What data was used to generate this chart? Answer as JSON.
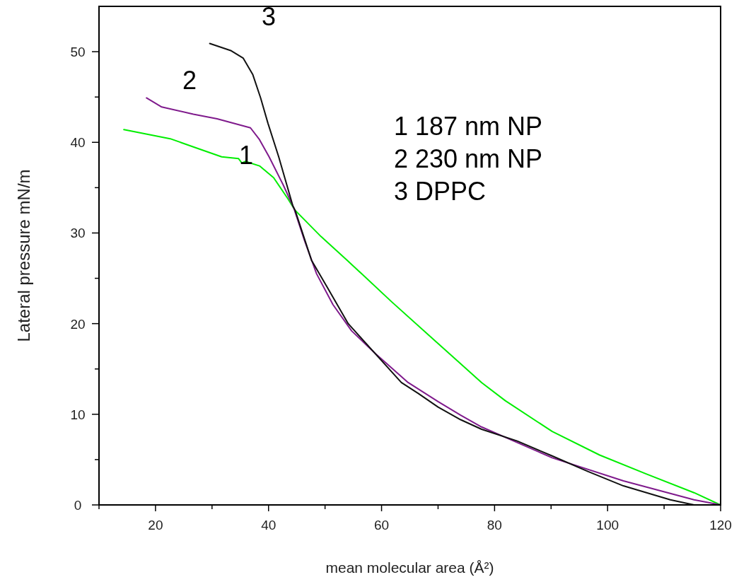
{
  "chart_data": {
    "type": "line",
    "xlabel": "mean molecular area (Å²)",
    "ylabel": "Lateral pressure mN/m",
    "xlim": [
      10,
      120
    ],
    "ylim": [
      0,
      55
    ],
    "xticks": [
      {
        "value": 10,
        "label": null
      },
      20,
      {
        "value": 30,
        "label": null
      },
      40,
      {
        "value": 50,
        "label": null
      },
      60,
      {
        "value": 70,
        "label": null
      },
      80,
      {
        "value": 90,
        "label": null
      },
      100,
      {
        "value": 110,
        "label": null
      },
      120
    ],
    "yticks": [
      0,
      {
        "value": 5,
        "label": null
      },
      10,
      {
        "value": 15,
        "label": null
      },
      20,
      {
        "value": 25,
        "label": null
      },
      30,
      {
        "value": 35,
        "label": null
      },
      40,
      {
        "value": 45,
        "label": null
      },
      50
    ],
    "grid": false,
    "marker": "none",
    "line_style": "solid",
    "series": [
      {
        "color": "#00ee00",
        "x": [
          14.4,
          22.6,
          26.7,
          31.7,
          34.7,
          35.3,
          35.9,
          38.4,
          40.9,
          43.4,
          44.7,
          49.3,
          53.9,
          61.8,
          69.3,
          77.7,
          81.9,
          90.2,
          98.6,
          106.9,
          115.3,
          120
        ],
        "values": [
          41.4,
          40.4,
          39.5,
          38.4,
          38.2,
          37.7,
          37.9,
          37.4,
          36.1,
          33.8,
          32.5,
          29.6,
          27.0,
          22.4,
          18.2,
          13.5,
          11.5,
          8.1,
          5.5,
          3.4,
          1.35,
          0
        ]
      },
      {
        "color": "#7f1a8c",
        "x": [
          18.4,
          21.1,
          26.7,
          30.9,
          36.8,
          38.4,
          40.1,
          42.6,
          44.5,
          46.4,
          48.5,
          51.4,
          54.7,
          58.9,
          64.7,
          70,
          74,
          77.7,
          90.2,
          102.8,
          115.3,
          120
        ],
        "values": [
          44.9,
          43.9,
          43.1,
          42.6,
          41.6,
          40.3,
          38.4,
          35.3,
          32.7,
          29.1,
          25.5,
          22.1,
          19.2,
          16.7,
          13.5,
          11.4,
          9.9,
          8.6,
          5.2,
          2.65,
          0.57,
          0
        ]
      },
      {
        "color": "#111111",
        "x": [
          29.6,
          33.4,
          35.5,
          37.2,
          38.6,
          39.9,
          41.8,
          44.3,
          44.7,
          47.6,
          50.5,
          54.1,
          63.5,
          66.5,
          70,
          74,
          77.7,
          84,
          90.2,
          96.5,
          102.8,
          111.1,
          115.3,
          120
        ],
        "values": [
          50.9,
          50.1,
          49.3,
          47.5,
          44.9,
          42.1,
          38.4,
          33.0,
          32.5,
          27.0,
          23.9,
          20.0,
          13.5,
          12.3,
          10.8,
          9.4,
          8.35,
          7.05,
          5.4,
          3.7,
          2.1,
          0.57,
          0,
          0
        ]
      }
    ],
    "annotations": [
      "1",
      "2",
      "3",
      "1 187 nm NP",
      "2 230 nm NP",
      "3 DPPC"
    ]
  }
}
